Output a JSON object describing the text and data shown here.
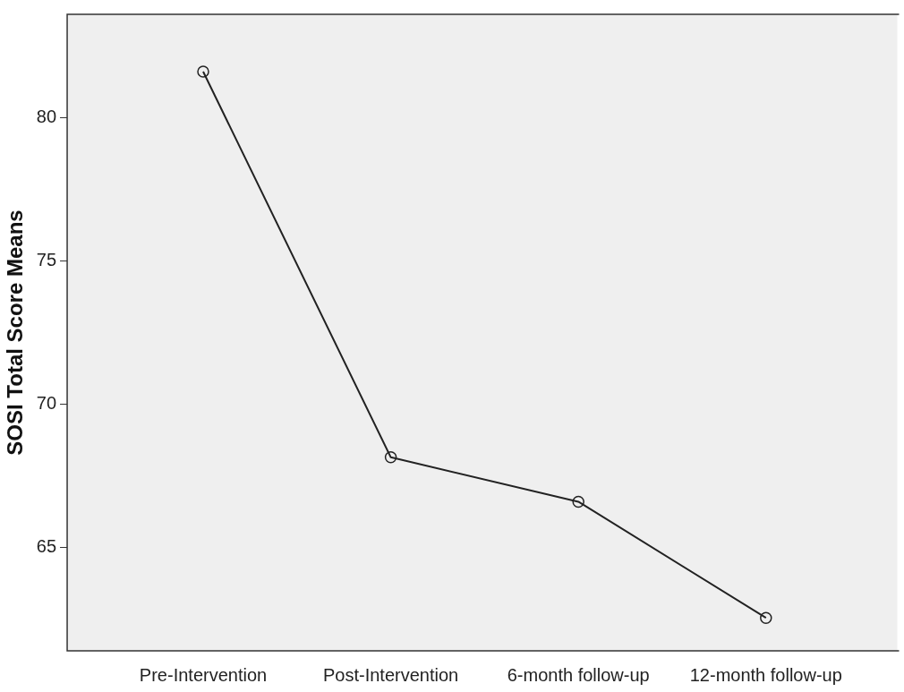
{
  "chart_data": {
    "type": "line",
    "ylabel": "SOSI Total Score Means",
    "categories": [
      "Pre-Intervention",
      "Post-Intervention",
      "6-month follow-up",
      "12-month follow-up"
    ],
    "values": [
      81.6,
      68.15,
      66.6,
      62.55
    ],
    "color": "#222222",
    "ylim": [
      61.4,
      83.6
    ],
    "yticks": [
      65,
      70,
      75,
      80
    ],
    "grid": false,
    "legend": false,
    "marker": "circle",
    "line_style": "solid"
  }
}
